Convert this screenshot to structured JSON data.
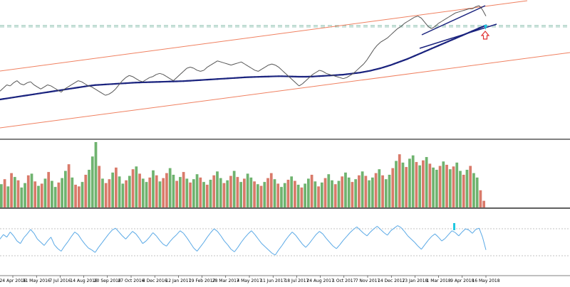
{
  "colors": {
    "background": "#ffffff",
    "price_line": "#555555",
    "moving_average": "#1a237e",
    "channel_lines": "#f08060",
    "trend_lines": "#1a237e",
    "dashed_level": "#7fb8a6",
    "volume_up": "#6fb36f",
    "volume_down": "#d97a6a",
    "oscillator": "#5aa9e6",
    "oscillator_levels": "#b0b0b0",
    "panel_separator": "#000000",
    "arrow_up": "#e03030",
    "marker_cyan": "#20c8e0"
  },
  "icons": {
    "price_marker": "cyan-marker-icon",
    "arrow": "up-arrow-icon",
    "signal": "cyan-signal-bar-icon"
  },
  "chart_data": [
    {
      "type": "line",
      "title": "",
      "series": [
        {
          "values": [
            108,
            111,
            114,
            113,
            116,
            118,
            115,
            114,
            116,
            117,
            114,
            112,
            110,
            112,
            114,
            113,
            111,
            109,
            107,
            110,
            112,
            114,
            116,
            118,
            117,
            115,
            113,
            112,
            110,
            108,
            106,
            104,
            105,
            107,
            110,
            114,
            118,
            121,
            123,
            122,
            120,
            118,
            117,
            119,
            121,
            122,
            124,
            125,
            124,
            122,
            120,
            118,
            121,
            124,
            127,
            130,
            131,
            130,
            128,
            127,
            128,
            131,
            133,
            135,
            137,
            136,
            135,
            134,
            133,
            134,
            135,
            136,
            134,
            132,
            130,
            128,
            127,
            129,
            131,
            133,
            134,
            133,
            131,
            128,
            125,
            122,
            119,
            116,
            113,
            115,
            118,
            121,
            124,
            126,
            128,
            127,
            125,
            124,
            123,
            122,
            121,
            120,
            121,
            123,
            125,
            128,
            131,
            134,
            138,
            143,
            148,
            152,
            155,
            157,
            159,
            162,
            165,
            168,
            170,
            173,
            175,
            177,
            179,
            180,
            178,
            174,
            170,
            168,
            170,
            173,
            175,
            177,
            179,
            181,
            183,
            184,
            185,
            186,
            187,
            187,
            189,
            190,
            186,
            180
          ]
        },
        {
          "values": [
            100,
            100.5,
            101,
            101.5,
            102,
            102.5,
            103,
            103.5,
            104,
            104.5,
            105,
            105.5,
            106,
            106.5,
            107,
            107.5,
            108,
            108.5,
            109,
            109.5,
            110,
            110.5,
            111,
            111.5,
            112,
            112.5,
            113,
            113.4,
            113.8,
            114,
            114.2,
            114.4,
            114.6,
            114.8,
            115,
            115.2,
            115.4,
            115.6,
            115.8,
            116,
            116.2,
            116.3,
            116.4,
            116.5,
            116.6,
            116.7,
            116.8,
            116.9,
            117,
            117.1,
            117.2,
            117.3,
            117.4,
            117.5,
            117.6,
            117.8,
            118,
            118.2,
            118.4,
            118.6,
            118.8,
            119,
            119.2,
            119.4,
            119.6,
            119.8,
            120,
            120.2,
            120.4,
            120.6,
            120.8,
            121,
            121.2,
            121.4,
            121.5,
            121.6,
            121.7,
            121.8,
            121.9,
            122,
            122.1,
            122.2,
            122.3,
            122.3,
            122.2,
            122.1,
            122,
            121.9,
            121.8,
            121.8,
            121.8,
            121.9,
            122,
            122.2,
            122.4,
            122.6,
            122.8,
            123,
            123.2,
            123.4,
            123.6,
            123.8,
            124.2,
            124.6,
            125,
            125.4,
            125.8,
            126.4,
            127,
            127.6,
            128.4,
            129.2,
            130,
            131,
            132,
            133,
            134.2,
            135.4,
            136.6,
            137.8,
            139,
            140.4,
            141.8,
            143.2,
            144.6,
            146,
            147.4,
            148.8,
            150.2,
            151.6,
            153,
            154.4,
            155.8,
            157.2,
            158.6,
            160,
            161.4,
            162.8,
            164.2,
            165.6,
            167,
            168.4,
            169.8,
            171.2
          ]
        }
      ]
    },
    {
      "type": "bar",
      "title": "",
      "values": [
        4.2,
        5.1,
        3.8,
        6.2,
        5.5,
        4.9,
        3.6,
        4.4,
        5.8,
        6.1,
        4.7,
        3.9,
        4.3,
        5.2,
        6.4,
        4.8,
        3.7,
        4.5,
        5.3,
        6.6,
        7.8,
        5.4,
        4.1,
        3.8,
        4.6,
        5.9,
        6.8,
        9.2,
        11.8,
        7.5,
        5.2,
        4.4,
        5.1,
        6.3,
        7.2,
        5.6,
        4.3,
        4.9,
        5.7,
        6.9,
        7.4,
        6.1,
        5.2,
        4.6,
        5.4,
        6.7,
        5.8,
        4.7,
        5.3,
        6.2,
        7.1,
        5.9,
        4.8,
        5.5,
        6.4,
        5.2,
        4.5,
        5.1,
        6.0,
        5.4,
        4.6,
        4.1,
        5.0,
        5.8,
        6.5,
        5.3,
        4.4,
        4.9,
        5.7,
        6.6,
        5.5,
        4.6,
        5.2,
        6.1,
        5.4,
        4.7,
        4.2,
        3.9,
        4.6,
        5.3,
        6.2,
        5.1,
        4.3,
        3.7,
        4.4,
        5.0,
        5.6,
        4.8,
        4.1,
        3.6,
        4.3,
        5.2,
        5.9,
        4.7,
        3.8,
        4.5,
        5.3,
        6.0,
        4.9,
        4.2,
        4.8,
        5.6,
        6.3,
        5.4,
        4.6,
        5.1,
        5.8,
        6.5,
        5.7,
        4.9,
        5.4,
        6.2,
        6.9,
        5.8,
        5.1,
        5.9,
        7.1,
        8.4,
        9.6,
        8.1,
        7.3,
        8.8,
        9.4,
        8.2,
        7.6,
        8.5,
        9.1,
        7.9,
        7.2,
        6.8,
        7.5,
        8.3,
        7.7,
        6.9,
        7.4,
        8.1,
        6.6,
        5.9,
        6.8,
        7.5,
        6.2,
        5.4,
        3.1,
        1.2
      ],
      "up": [
        1,
        0,
        1,
        0,
        1,
        0,
        1,
        1,
        0,
        1,
        0,
        1,
        0,
        1,
        0,
        1,
        1,
        0,
        1,
        1,
        0,
        1,
        0,
        0,
        1,
        0,
        1,
        1,
        1,
        0,
        1,
        0,
        0,
        1,
        0,
        1,
        1,
        0,
        1,
        0,
        1,
        0,
        1,
        1,
        0,
        1,
        0,
        1,
        0,
        0,
        1,
        1,
        0,
        1,
        0,
        1,
        0,
        1,
        1,
        0,
        1,
        0,
        1,
        0,
        1,
        1,
        0,
        1,
        0,
        1,
        0,
        1,
        0,
        1,
        1,
        0,
        1,
        0,
        1,
        0,
        0,
        1,
        0,
        1,
        1,
        0,
        1,
        0,
        1,
        0,
        1,
        1,
        0,
        1,
        0,
        1,
        0,
        1,
        1,
        0,
        1,
        0,
        1,
        1,
        0,
        1,
        0,
        1,
        0,
        1,
        1,
        0,
        1,
        0,
        1,
        1,
        0,
        1,
        0,
        1,
        0,
        1,
        1,
        0,
        1,
        0,
        1,
        0,
        1,
        1,
        0,
        1,
        0,
        1,
        0,
        1,
        1,
        0,
        1,
        0,
        1,
        1,
        0,
        0
      ]
    },
    {
      "type": "line",
      "title": "",
      "ylim": [
        0,
        100
      ],
      "levels": [
        70,
        30
      ],
      "series": [
        {
          "values": [
            55,
            62,
            58,
            66,
            60,
            52,
            48,
            57,
            63,
            70,
            64,
            55,
            50,
            45,
            52,
            58,
            46,
            40,
            36,
            44,
            51,
            59,
            66,
            62,
            54,
            47,
            41,
            38,
            34,
            42,
            49,
            56,
            63,
            69,
            72,
            66,
            60,
            55,
            61,
            67,
            63,
            56,
            48,
            52,
            58,
            65,
            60,
            53,
            47,
            44,
            51,
            57,
            62,
            68,
            64,
            57,
            49,
            41,
            36,
            43,
            50,
            58,
            65,
            71,
            67,
            60,
            52,
            46,
            39,
            35,
            42,
            50,
            57,
            63,
            68,
            62,
            55,
            48,
            43,
            38,
            33,
            30,
            38,
            45,
            53,
            60,
            66,
            61,
            54,
            47,
            42,
            48,
            55,
            62,
            67,
            63,
            56,
            50,
            44,
            40,
            46,
            53,
            59,
            65,
            70,
            74,
            69,
            64,
            60,
            66,
            71,
            75,
            70,
            65,
            61,
            68,
            72,
            76,
            73,
            67,
            60,
            55,
            50,
            44,
            39,
            46,
            53,
            59,
            63,
            58,
            52,
            56,
            62,
            68,
            65,
            60,
            66,
            71,
            69,
            64,
            70,
            72,
            58,
            38
          ]
        }
      ]
    }
  ],
  "time_axis": {
    "labels": [
      "24 Apr 2016",
      "31 May 2016",
      "7 Jul 2016",
      "14 Aug 2016",
      "20 Sep 2016",
      "27 Oct 2016",
      "4 Dec 2016",
      "12 Jan 2017",
      "19 Feb 2017",
      "28 Mar 2017",
      "4 May 2017",
      "11 Jun 2017",
      "18 Jul 2017",
      "24 Aug 2017",
      "1 Oct 2017",
      "7 Nov 2017",
      "14 Dec 2017",
      "23 Jan 2018",
      "1 Mar 2018",
      "9 Apr 2018",
      "16 May 2018"
    ]
  }
}
